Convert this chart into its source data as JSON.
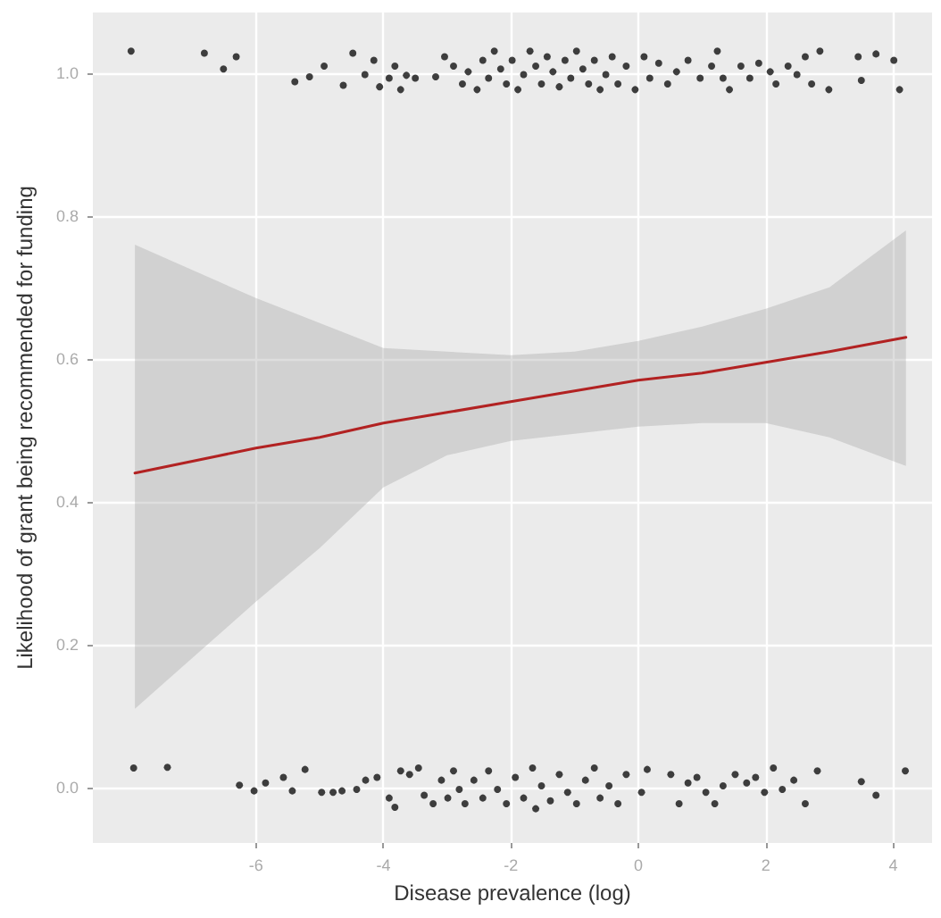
{
  "chart_data": {
    "type": "scatter",
    "xlabel": "Disease prevalence (log)",
    "ylabel": "Likelihood of grant being recommended for funding",
    "xlim": [
      -8.56,
      4.61
    ],
    "xticks": [
      -6,
      -4,
      -2,
      0,
      2,
      4
    ],
    "ylim": [
      -0.078,
      1.085
    ],
    "yticks": [
      {
        "value": 0,
        "label": "0.0"
      },
      0.2,
      0.4,
      0.6,
      0.8,
      {
        "value": 1,
        "label": "1.0"
      }
    ],
    "grid": true,
    "marker": "circle",
    "series": [
      {
        "color": "#111111",
        "x": [
          -7.96,
          -6.81,
          -6.51,
          -6.31,
          -5.39,
          -5.16,
          -4.93,
          -4.63,
          -4.48,
          -4.29,
          -4.15,
          -4.06,
          -3.91,
          -3.82,
          -3.73,
          -3.64,
          -3.5,
          -3.18,
          -3.04,
          -2.9,
          -2.76,
          -2.67,
          -2.53,
          -2.44,
          -2.35,
          -2.26,
          -2.16,
          -2.07,
          -1.98,
          -1.89,
          -1.8,
          -1.7,
          -1.61,
          -1.52,
          -1.43,
          -1.34,
          -1.24,
          -1.15,
          -1.06,
          -0.97,
          -0.87,
          -0.78,
          -0.69,
          -0.6,
          -0.51,
          -0.41,
          -0.32,
          -0.19,
          -0.05,
          0.09,
          0.18,
          0.32,
          0.46,
          0.6,
          0.78,
          0.97,
          1.15,
          1.24,
          1.33,
          1.43,
          1.61,
          1.75,
          1.89,
          2.07,
          2.16,
          2.35,
          2.49,
          2.62,
          2.72,
          2.85,
          2.99,
          3.45,
          3.5,
          3.73,
          4.01,
          4.1
        ],
        "values": [
          1.031,
          1.028,
          1.006,
          1.023,
          0.988,
          0.995,
          1.01,
          0.983,
          1.028,
          0.998,
          1.018,
          0.981,
          0.993,
          1.01,
          0.977,
          0.997,
          0.993,
          0.995,
          1.023,
          1.01,
          0.985,
          1.002,
          0.977,
          1.018,
          0.993,
          1.031,
          1.006,
          0.985,
          1.018,
          0.977,
          0.998,
          1.031,
          1.01,
          0.985,
          1.023,
          1.002,
          0.981,
          1.018,
          0.993,
          1.031,
          1.006,
          0.985,
          1.018,
          0.977,
          0.998,
          1.023,
          0.985,
          1.01,
          0.977,
          1.023,
          0.993,
          1.014,
          0.985,
          1.002,
          1.018,
          0.993,
          1.01,
          1.031,
          0.993,
          0.977,
          1.01,
          0.993,
          1.014,
          1.002,
          0.985,
          1.01,
          0.998,
          1.023,
          0.985,
          1.031,
          0.977,
          1.023,
          0.99,
          1.027,
          1.018,
          0.977
        ]
      },
      {
        "color": "#111111",
        "x": [
          -7.92,
          -7.39,
          -6.26,
          -6.03,
          -5.85,
          -5.57,
          -5.43,
          -5.23,
          -4.97,
          -4.79,
          -4.65,
          -4.42,
          -4.28,
          -4.1,
          -3.91,
          -3.82,
          -3.73,
          -3.59,
          -3.45,
          -3.36,
          -3.22,
          -3.09,
          -2.99,
          -2.9,
          -2.81,
          -2.72,
          -2.58,
          -2.44,
          -2.35,
          -2.21,
          -2.07,
          -1.93,
          -1.8,
          -1.66,
          -1.61,
          -1.52,
          -1.38,
          -1.24,
          -1.11,
          -0.97,
          -0.83,
          -0.69,
          -0.6,
          -0.46,
          -0.32,
          -0.19,
          0.05,
          0.14,
          0.51,
          0.64,
          0.78,
          0.92,
          1.06,
          1.2,
          1.33,
          1.52,
          1.7,
          1.84,
          1.98,
          2.12,
          2.26,
          2.44,
          2.62,
          2.81,
          3.5,
          3.73,
          4.19
        ],
        "values": [
          0.027,
          0.028,
          0.003,
          -0.005,
          0.006,
          0.014,
          -0.005,
          0.025,
          -0.007,
          -0.007,
          -0.005,
          -0.003,
          0.01,
          0.014,
          -0.015,
          -0.028,
          0.023,
          0.018,
          0.027,
          -0.011,
          -0.023,
          0.01,
          -0.015,
          0.023,
          -0.003,
          -0.023,
          0.01,
          -0.015,
          0.023,
          -0.003,
          -0.023,
          0.014,
          -0.015,
          0.027,
          -0.03,
          0.002,
          -0.019,
          0.018,
          -0.007,
          -0.023,
          0.01,
          0.027,
          -0.015,
          0.002,
          -0.023,
          0.018,
          -0.007,
          0.025,
          0.018,
          -0.023,
          0.006,
          0.014,
          -0.007,
          -0.023,
          0.002,
          0.018,
          0.006,
          0.014,
          -0.007,
          0.027,
          -0.003,
          0.01,
          -0.023,
          0.023,
          0.008,
          -0.011,
          0.023
        ]
      },
      {
        "type": "line",
        "color": "#b22222",
        "line_style": "solid",
        "marker": "none",
        "x": [
          -7.9,
          -6,
          -5,
          -4,
          -3,
          -2,
          -1,
          0,
          1,
          2,
          3,
          4.2
        ],
        "values": [
          0.44,
          0.475,
          0.49,
          0.51,
          0.525,
          0.54,
          0.555,
          0.57,
          0.58,
          0.595,
          0.61,
          0.63
        ],
        "lower": [
          0.11,
          0.26,
          0.335,
          0.42,
          0.465,
          0.485,
          0.495,
          0.505,
          0.51,
          0.51,
          0.49,
          0.45
        ],
        "upper": [
          0.76,
          0.685,
          0.65,
          0.615,
          0.61,
          0.605,
          0.61,
          0.625,
          0.645,
          0.67,
          0.7,
          0.78
        ]
      }
    ]
  }
}
